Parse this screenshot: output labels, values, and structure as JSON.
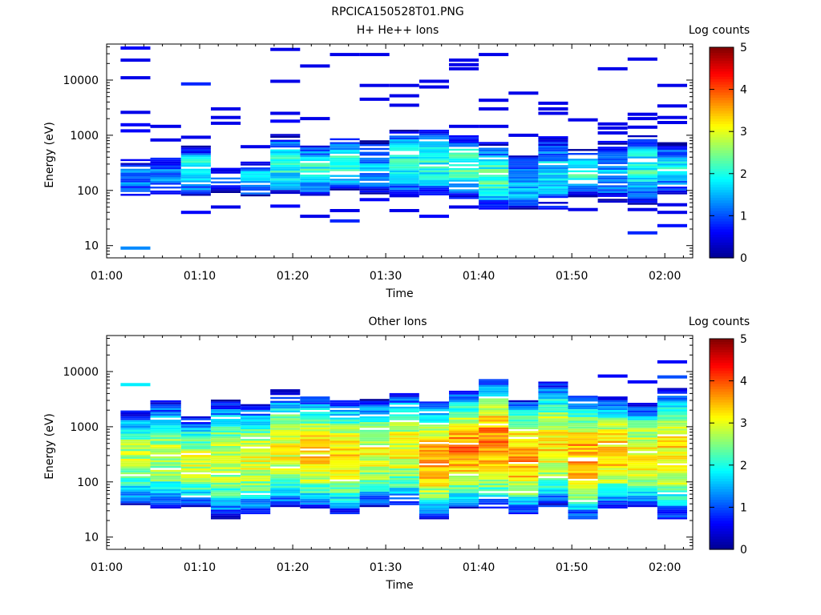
{
  "figure": {
    "title": "RPCICA150528T01.PNG"
  },
  "colorscale": {
    "stops": [
      "#00008f",
      "#0000ff",
      "#0080ff",
      "#00ffff",
      "#80ff80",
      "#ffff00",
      "#ff8000",
      "#ff0000",
      "#800000"
    ]
  },
  "chart_data": [
    {
      "type": "heatmap",
      "title": "H+ He++ Ions",
      "xlabel": "Time",
      "ylabel": "Energy (eV)",
      "yscale": "log",
      "ylim": [
        6,
        45000
      ],
      "xlim": [
        "01:00",
        "02:03"
      ],
      "x_ticks": [
        "01:00",
        "01:10",
        "01:20",
        "01:30",
        "01:40",
        "01:50",
        "02:00"
      ],
      "y_ticks": [
        "10",
        "100",
        "1000",
        "10000"
      ],
      "colorbar": {
        "label": "Log counts",
        "range": [
          0,
          5
        ],
        "ticks": [
          "0",
          "1",
          "2",
          "3",
          "4",
          "5"
        ]
      },
      "time_bins_min": [
        [
          1.5,
          4.7
        ],
        [
          4.7,
          8.0
        ],
        [
          8.0,
          11.2
        ],
        [
          11.2,
          14.4
        ],
        [
          14.4,
          17.6
        ],
        [
          17.6,
          20.8
        ],
        [
          20.8,
          24.0
        ],
        [
          24.0,
          27.2
        ],
        [
          27.2,
          30.4
        ],
        [
          30.4,
          33.6
        ],
        [
          33.6,
          36.8
        ],
        [
          36.8,
          40.0
        ],
        [
          40.0,
          43.2
        ],
        [
          43.2,
          46.4
        ],
        [
          46.4,
          49.6
        ],
        [
          49.6,
          52.8
        ],
        [
          52.8,
          56.0
        ],
        [
          56.0,
          59.2
        ],
        [
          59.2,
          62.4
        ]
      ],
      "columns": [
        {
          "lo": 80,
          "hi": 350,
          "peak": 1.2,
          "sparse": 0.15,
          "extras": [
            [
              9,
              1.3
            ],
            [
              1200,
              0.6
            ],
            [
              1550,
              0.6
            ],
            [
              2600,
              0.5
            ],
            [
              11000,
              0.5
            ],
            [
              23000,
              0.5
            ],
            [
              38000,
              0.6
            ]
          ]
        },
        {
          "lo": 85,
          "hi": 420,
          "peak": 1.2,
          "sparse": 0.2,
          "extras": [
            [
              820,
              0.5
            ],
            [
              1450,
              0.5
            ]
          ]
        },
        {
          "lo": 80,
          "hi": 620,
          "peak": 2.0,
          "sparse": 0.2,
          "extras": [
            [
              40,
              0.6
            ],
            [
              8500,
              0.8
            ],
            [
              920,
              0.5
            ]
          ]
        },
        {
          "lo": 90,
          "hi": 260,
          "peak": 0.9,
          "sparse": 0.4,
          "extras": [
            [
              50,
              0.5
            ],
            [
              1650,
              0.5
            ],
            [
              2100,
              0.5
            ],
            [
              3000,
              0.5
            ]
          ]
        },
        {
          "lo": 78,
          "hi": 320,
          "peak": 1.7,
          "sparse": 0.3,
          "extras": [
            [
              620,
              0.5
            ]
          ]
        },
        {
          "lo": 80,
          "hi": 1000,
          "peak": 2.0,
          "sparse": 0.15,
          "extras": [
            [
              52,
              0.6
            ],
            [
              1800,
              0.6
            ],
            [
              2500,
              0.5
            ],
            [
              9500,
              0.5
            ],
            [
              36000,
              0.5
            ]
          ]
        },
        {
          "lo": 80,
          "hi": 700,
          "peak": 2.0,
          "sparse": 0.15,
          "extras": [
            [
              34,
              0.5
            ],
            [
              2000,
              0.5
            ],
            [
              18000,
              0.5
            ]
          ]
        },
        {
          "lo": 100,
          "hi": 850,
          "peak": 2.2,
          "sparse": 0.2,
          "extras": [
            [
              28,
              0.8
            ],
            [
              43,
              0.5
            ],
            [
              29000,
              0.5
            ]
          ]
        },
        {
          "lo": 85,
          "hi": 750,
          "peak": 1.5,
          "sparse": 0.15,
          "extras": [
            [
              68,
              0.6
            ],
            [
              4500,
              0.5
            ],
            [
              8000,
              0.5
            ],
            [
              29000,
              0.5
            ]
          ]
        },
        {
          "lo": 75,
          "hi": 1250,
          "peak": 2.0,
          "sparse": 0.1,
          "extras": [
            [
              43,
              0.5
            ],
            [
              3500,
              0.5
            ],
            [
              5200,
              0.5
            ],
            [
              8000,
              0.5
            ]
          ]
        },
        {
          "lo": 75,
          "hi": 1200,
          "peak": 2.0,
          "sparse": 0.1,
          "extras": [
            [
              34,
              0.6
            ],
            [
              7500,
              0.5
            ],
            [
              9500,
              0.5
            ]
          ]
        },
        {
          "lo": 70,
          "hi": 1000,
          "peak": 2.2,
          "sparse": 0.1,
          "extras": [
            [
              50,
              0.5
            ],
            [
              1450,
              0.5
            ],
            [
              16000,
              0.5
            ],
            [
              19000,
              0.5
            ],
            [
              23000,
              0.5
            ]
          ]
        },
        {
          "lo": 45,
          "hi": 700,
          "peak": 2.2,
          "sparse": 0.05,
          "extras": [
            [
              1450,
              0.5
            ],
            [
              3000,
              0.5
            ],
            [
              4300,
              0.5
            ],
            [
              29000,
              0.5
            ]
          ]
        },
        {
          "lo": 45,
          "hi": 420,
          "peak": 1.6,
          "sparse": 0.05,
          "extras": [
            [
              1000,
              0.5
            ],
            [
              5800,
              0.5
            ]
          ]
        },
        {
          "lo": 45,
          "hi": 900,
          "peak": 1.7,
          "sparse": 0.1,
          "extras": [
            [
              2500,
              0.5
            ],
            [
              3000,
              0.5
            ],
            [
              3800,
              0.5
            ]
          ]
        },
        {
          "lo": 75,
          "hi": 550,
          "peak": 2.0,
          "sparse": 0.1,
          "extras": [
            [
              45,
              0.5
            ],
            [
              1900,
              0.5
            ]
          ]
        },
        {
          "lo": 60,
          "hi": 750,
          "peak": 1.4,
          "sparse": 0.1,
          "extras": [
            [
              1100,
              0.5
            ],
            [
              1350,
              0.5
            ],
            [
              1600,
              0.5
            ],
            [
              16000,
              0.5
            ]
          ]
        },
        {
          "lo": 55,
          "hi": 1000,
          "peak": 2.0,
          "sparse": 0.1,
          "extras": [
            [
              17,
              0.8
            ],
            [
              45,
              0.5
            ],
            [
              1400,
              0.5
            ],
            [
              2000,
              0.5
            ],
            [
              2400,
              0.5
            ],
            [
              24000,
              0.5
            ]
          ]
        },
        {
          "lo": 85,
          "hi": 700,
          "peak": 1.8,
          "sparse": 0.1,
          "extras": [
            [
              23,
              0.7
            ],
            [
              40,
              0.5
            ],
            [
              55,
              0.5
            ],
            [
              1700,
              0.5
            ],
            [
              2100,
              0.5
            ],
            [
              3400,
              0.5
            ],
            [
              8000,
              0.5
            ]
          ]
        }
      ]
    },
    {
      "type": "heatmap",
      "title": "Other Ions",
      "xlabel": "Time",
      "ylabel": "Energy (eV)",
      "yscale": "log",
      "ylim": [
        6,
        45000
      ],
      "xlim": [
        "01:00",
        "02:03"
      ],
      "x_ticks": [
        "01:00",
        "01:10",
        "01:20",
        "01:30",
        "01:40",
        "01:50",
        "02:00"
      ],
      "y_ticks": [
        "10",
        "100",
        "1000",
        "10000"
      ],
      "colorbar": {
        "label": "Log counts",
        "range": [
          0,
          5
        ],
        "ticks": [
          "0",
          "1",
          "2",
          "3",
          "4",
          "5"
        ]
      },
      "time_bins_min": [
        [
          1.5,
          4.7
        ],
        [
          4.7,
          8.0
        ],
        [
          8.0,
          11.2
        ],
        [
          11.2,
          14.4
        ],
        [
          14.4,
          17.6
        ],
        [
          17.6,
          20.8
        ],
        [
          20.8,
          24.0
        ],
        [
          24.0,
          27.2
        ],
        [
          27.2,
          30.4
        ],
        [
          30.4,
          33.6
        ],
        [
          33.6,
          36.8
        ],
        [
          36.8,
          40.0
        ],
        [
          40.0,
          43.2
        ],
        [
          43.2,
          46.4
        ],
        [
          46.4,
          49.6
        ],
        [
          49.6,
          52.8
        ],
        [
          52.8,
          56.0
        ],
        [
          56.0,
          59.2
        ],
        [
          59.2,
          62.4
        ]
      ],
      "columns": [
        {
          "lo": 38,
          "hi": 1900,
          "peak": 2.8,
          "sparse": 0.05,
          "extras": [
            [
              5800,
              1.8
            ]
          ]
        },
        {
          "lo": 33,
          "hi": 2900,
          "peak": 2.8,
          "sparse": 0.05,
          "extras": []
        },
        {
          "lo": 35,
          "hi": 1500,
          "peak": 2.9,
          "sparse": 0.05,
          "extras": []
        },
        {
          "lo": 21,
          "hi": 2900,
          "peak": 2.9,
          "sparse": 0.05,
          "extras": []
        },
        {
          "lo": 26,
          "hi": 2500,
          "peak": 3.0,
          "sparse": 0.05,
          "extras": []
        },
        {
          "lo": 35,
          "hi": 4500,
          "peak": 3.1,
          "sparse": 0.05,
          "extras": []
        },
        {
          "lo": 33,
          "hi": 3500,
          "peak": 3.4,
          "sparse": 0.05,
          "extras": []
        },
        {
          "lo": 26,
          "hi": 3000,
          "peak": 3.3,
          "sparse": 0.05,
          "extras": []
        },
        {
          "lo": 35,
          "hi": 3000,
          "peak": 3.0,
          "sparse": 0.05,
          "extras": []
        },
        {
          "lo": 38,
          "hi": 4000,
          "peak": 3.1,
          "sparse": 0.05,
          "extras": []
        },
        {
          "lo": 21,
          "hi": 2800,
          "peak": 3.5,
          "sparse": 0.05,
          "extras": []
        },
        {
          "lo": 33,
          "hi": 4300,
          "peak": 3.7,
          "sparse": 0.05,
          "extras": []
        },
        {
          "lo": 33,
          "hi": 7000,
          "peak": 3.8,
          "sparse": 0.05,
          "extras": []
        },
        {
          "lo": 26,
          "hi": 3000,
          "peak": 3.6,
          "sparse": 0.05,
          "extras": []
        },
        {
          "lo": 35,
          "hi": 6500,
          "peak": 3.2,
          "sparse": 0.05,
          "extras": []
        },
        {
          "lo": 21,
          "hi": 3600,
          "peak": 3.6,
          "sparse": 0.05,
          "extras": []
        },
        {
          "lo": 33,
          "hi": 3500,
          "peak": 3.4,
          "sparse": 0.05,
          "extras": [
            [
              8300,
              0.6
            ]
          ]
        },
        {
          "lo": 35,
          "hi": 2600,
          "peak": 3.2,
          "sparse": 0.05,
          "extras": [
            [
              6500,
              0.6
            ]
          ]
        },
        {
          "lo": 21,
          "hi": 5000,
          "peak": 3.2,
          "sparse": 0.05,
          "extras": [
            [
              8000,
              1.0
            ],
            [
              15000,
              0.6
            ]
          ]
        }
      ]
    }
  ]
}
